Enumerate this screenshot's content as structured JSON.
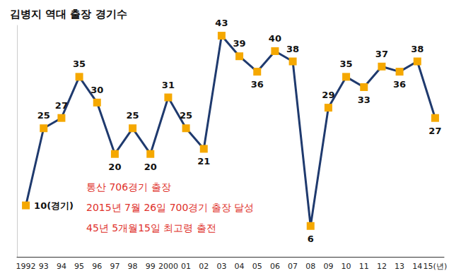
{
  "chart_data": {
    "type": "line",
    "title": "김병지 역대 출장 경기수",
    "annotations": [
      "통산 706경기 출장",
      "2015년 7월 26일 700경기 출장 달성",
      "45년 5개월15일 최고령 출전"
    ],
    "categories": [
      "1992",
      "93",
      "94",
      "95",
      "96",
      "97",
      "98",
      "99",
      "2000",
      "01",
      "02",
      "03",
      "04",
      "05",
      "06",
      "07",
      "08",
      "09",
      "10",
      "11",
      "12",
      "13",
      "14",
      "15(년)"
    ],
    "values": [
      10,
      25,
      27,
      35,
      30,
      20,
      25,
      20,
      31,
      25,
      21,
      43,
      39,
      36,
      40,
      38,
      6,
      29,
      35,
      33,
      37,
      36,
      38,
      27
    ],
    "value_labels": [
      "10(경기)",
      "25",
      "27",
      "35",
      "30",
      "20",
      "25",
      "20",
      "31",
      "25",
      "21",
      "43",
      "39",
      "36",
      "40",
      "38",
      "6",
      "29",
      "35",
      "33",
      "37",
      "36",
      "38",
      "27"
    ],
    "color": "#1f3a6e",
    "colors": [
      "#f5a800",
      "#f5a800",
      "#f5a800",
      "#f5a800",
      "#f5a800",
      "#f5a800",
      "#f5a800",
      "#f5a800",
      "#f5a800",
      "#f5a800",
      "#f5a800",
      "#f5a800",
      "#f5a800",
      "#f5a800",
      "#f5a800",
      "#f5a800",
      "#f5a800",
      "#f5a800",
      "#f5a800",
      "#f5a800",
      "#f5a800",
      "#f5a800",
      "#f5a800",
      "#f5a800"
    ],
    "marker": "square",
    "ylim": [
      0,
      45
    ],
    "tick_labels": "x",
    "grid": false,
    "data_labels": true
  }
}
